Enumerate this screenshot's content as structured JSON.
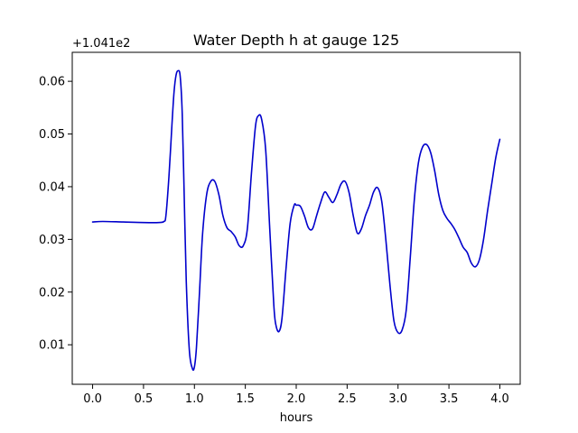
{
  "chart_data": {
    "type": "line",
    "title": "Water Depth h at gauge 125",
    "xlabel": "hours",
    "ylabel": "",
    "y_offset_label": "+1.041e2",
    "xlim": [
      -0.2,
      4.2
    ],
    "ylim": [
      0.0025,
      0.0655
    ],
    "x_ticks": [
      0.0,
      0.5,
      1.0,
      1.5,
      2.0,
      2.5,
      3.0,
      3.5,
      4.0
    ],
    "x_tick_labels": [
      "0.0",
      "0.5",
      "1.0",
      "1.5",
      "2.0",
      "2.5",
      "3.0",
      "3.5",
      "4.0"
    ],
    "y_ticks": [
      0.01,
      0.02,
      0.03,
      0.04,
      0.05,
      0.06
    ],
    "y_tick_labels": [
      "0.01",
      "0.02",
      "0.03",
      "0.04",
      "0.05",
      "0.06"
    ],
    "grid": false,
    "series": [
      {
        "color": "#0000cc",
        "x": [
          0.0,
          0.1,
          0.3,
          0.5,
          0.65,
          0.7,
          0.72,
          0.75,
          0.78,
          0.8,
          0.82,
          0.84,
          0.86,
          0.88,
          0.9,
          0.92,
          0.95,
          0.98,
          1.0,
          1.02,
          1.05,
          1.08,
          1.12,
          1.16,
          1.2,
          1.24,
          1.28,
          1.32,
          1.36,
          1.4,
          1.44,
          1.48,
          1.52,
          1.56,
          1.6,
          1.63,
          1.66,
          1.7,
          1.74,
          1.78,
          1.8,
          1.83,
          1.86,
          1.9,
          1.94,
          1.98,
          2.0,
          2.04,
          2.08,
          2.12,
          2.16,
          2.2,
          2.24,
          2.28,
          2.32,
          2.36,
          2.4,
          2.44,
          2.48,
          2.52,
          2.56,
          2.6,
          2.64,
          2.68,
          2.72,
          2.76,
          2.8,
          2.84,
          2.88,
          2.92,
          2.96,
          3.0,
          3.04,
          3.08,
          3.12,
          3.16,
          3.2,
          3.24,
          3.28,
          3.32,
          3.36,
          3.4,
          3.44,
          3.48,
          3.52,
          3.56,
          3.6,
          3.64,
          3.68,
          3.72,
          3.76,
          3.8,
          3.84,
          3.88,
          3.92,
          3.96,
          4.0
        ],
        "values": [
          0.0333,
          0.0334,
          0.0333,
          0.0332,
          0.0332,
          0.0334,
          0.0345,
          0.042,
          0.052,
          0.058,
          0.0612,
          0.062,
          0.061,
          0.054,
          0.038,
          0.022,
          0.009,
          0.0055,
          0.0058,
          0.0095,
          0.02,
          0.031,
          0.0385,
          0.041,
          0.041,
          0.0385,
          0.0345,
          0.0322,
          0.0315,
          0.0305,
          0.0288,
          0.0288,
          0.032,
          0.0425,
          0.0515,
          0.0535,
          0.0528,
          0.047,
          0.032,
          0.0175,
          0.0138,
          0.0125,
          0.015,
          0.0245,
          0.033,
          0.0365,
          0.0365,
          0.0363,
          0.0345,
          0.0322,
          0.032,
          0.0345,
          0.037,
          0.039,
          0.038,
          0.037,
          0.0385,
          0.0405,
          0.041,
          0.0388,
          0.0345,
          0.0312,
          0.032,
          0.0345,
          0.0365,
          0.039,
          0.0398,
          0.0372,
          0.03,
          0.0215,
          0.0145,
          0.0123,
          0.0128,
          0.0165,
          0.0265,
          0.0375,
          0.0445,
          0.0475,
          0.048,
          0.0465,
          0.043,
          0.0385,
          0.0355,
          0.034,
          0.033,
          0.0318,
          0.0302,
          0.0285,
          0.0275,
          0.0255,
          0.0248,
          0.0262,
          0.03,
          0.0355,
          0.0405,
          0.0455,
          0.049
        ]
      }
    ]
  }
}
